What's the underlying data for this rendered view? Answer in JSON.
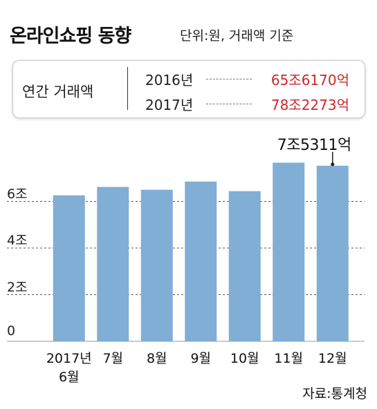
{
  "chart_data": {
    "type": "bar",
    "title": "온라인쇼핑 동향",
    "subtitle": "단위:원, 거래액 기준",
    "annual_box": {
      "label": "연간 거래액",
      "rows": [
        {
          "year": "2016년",
          "value": "65조6170억"
        },
        {
          "year": "2017년",
          "value": "78조2273억"
        }
      ]
    },
    "categories": [
      "2017년\n6월",
      "7월",
      "8월",
      "9월",
      "10월",
      "11월",
      "12월"
    ],
    "values": [
      6.26,
      6.62,
      6.5,
      6.85,
      6.44,
      7.66,
      7.5311
    ],
    "value_labels": [
      null,
      null,
      null,
      null,
      null,
      null,
      "7조5311억"
    ],
    "color": "#80aed5",
    "ylim": [
      0,
      8.5
    ],
    "yticks": [
      0,
      {
        "value": 2,
        "label": "2조"
      },
      {
        "value": 4,
        "label": "4조"
      },
      {
        "value": 6,
        "label": "6조"
      }
    ],
    "grid": true,
    "source": "자료:통계청"
  }
}
